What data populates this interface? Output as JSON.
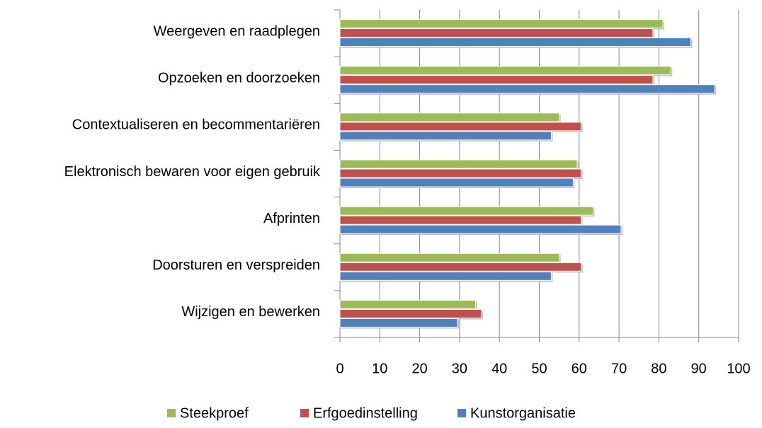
{
  "chart_data": {
    "type": "hbar",
    "categories": [
      "Weergeven en raadplegen",
      "Opzoeken en doorzoeken",
      "Contextualiseren en becommentariëren",
      "Elektronisch bewaren voor eigen gebruik",
      "Afprinten",
      "Doorsturen en verspreiden",
      "Wijzigen en bewerken"
    ],
    "series": [
      {
        "name": "Steekproef",
        "color": "#9bbb59",
        "values": [
          81,
          83,
          55,
          59.5,
          63.5,
          55,
          34
        ]
      },
      {
        "name": "Erfgoedinstelling",
        "color": "#c0504d",
        "values": [
          78.5,
          78.5,
          60.5,
          60.5,
          60.5,
          60.5,
          35.5
        ]
      },
      {
        "name": "Kunstorganisatie",
        "color": "#4f81bd",
        "values": [
          88,
          94,
          53,
          58.5,
          70.5,
          53,
          29.5
        ]
      }
    ],
    "xlim": [
      0,
      100
    ],
    "xticks": [
      0,
      10,
      20,
      30,
      40,
      50,
      60,
      70,
      80,
      90,
      100
    ],
    "grid": true,
    "legend": "bottom"
  }
}
